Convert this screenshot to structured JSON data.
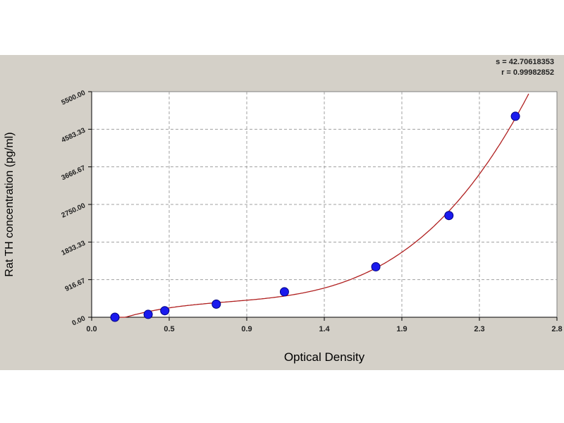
{
  "stats": {
    "s": "s = 42.70618353",
    "r": "r = 0.99982852"
  },
  "chart_data": {
    "type": "scatter",
    "xlabel": "Optical Density",
    "ylabel": "Rat TH concentration (pg/ml)",
    "xlim": [
      0.0,
      2.8
    ],
    "ylim": [
      0.0,
      5500.0
    ],
    "x_ticks": [
      "0.0",
      "0.5",
      "0.9",
      "1.4",
      "1.9",
      "2.3",
      "2.8"
    ],
    "y_ticks": [
      "0.00",
      "916.67",
      "1833.33",
      "2750.00",
      "3666.67",
      "4583.33",
      "5500.00"
    ],
    "grid": true,
    "series": [
      {
        "x": [
          0.14,
          0.34,
          0.44,
          0.75,
          1.16,
          1.71,
          2.15,
          2.55
        ],
        "y": [
          0,
          70,
          160,
          320,
          620,
          1230,
          2480,
          4900
        ],
        "color": "#1a1aee"
      }
    ],
    "fit_curve_color": "#b02020"
  }
}
